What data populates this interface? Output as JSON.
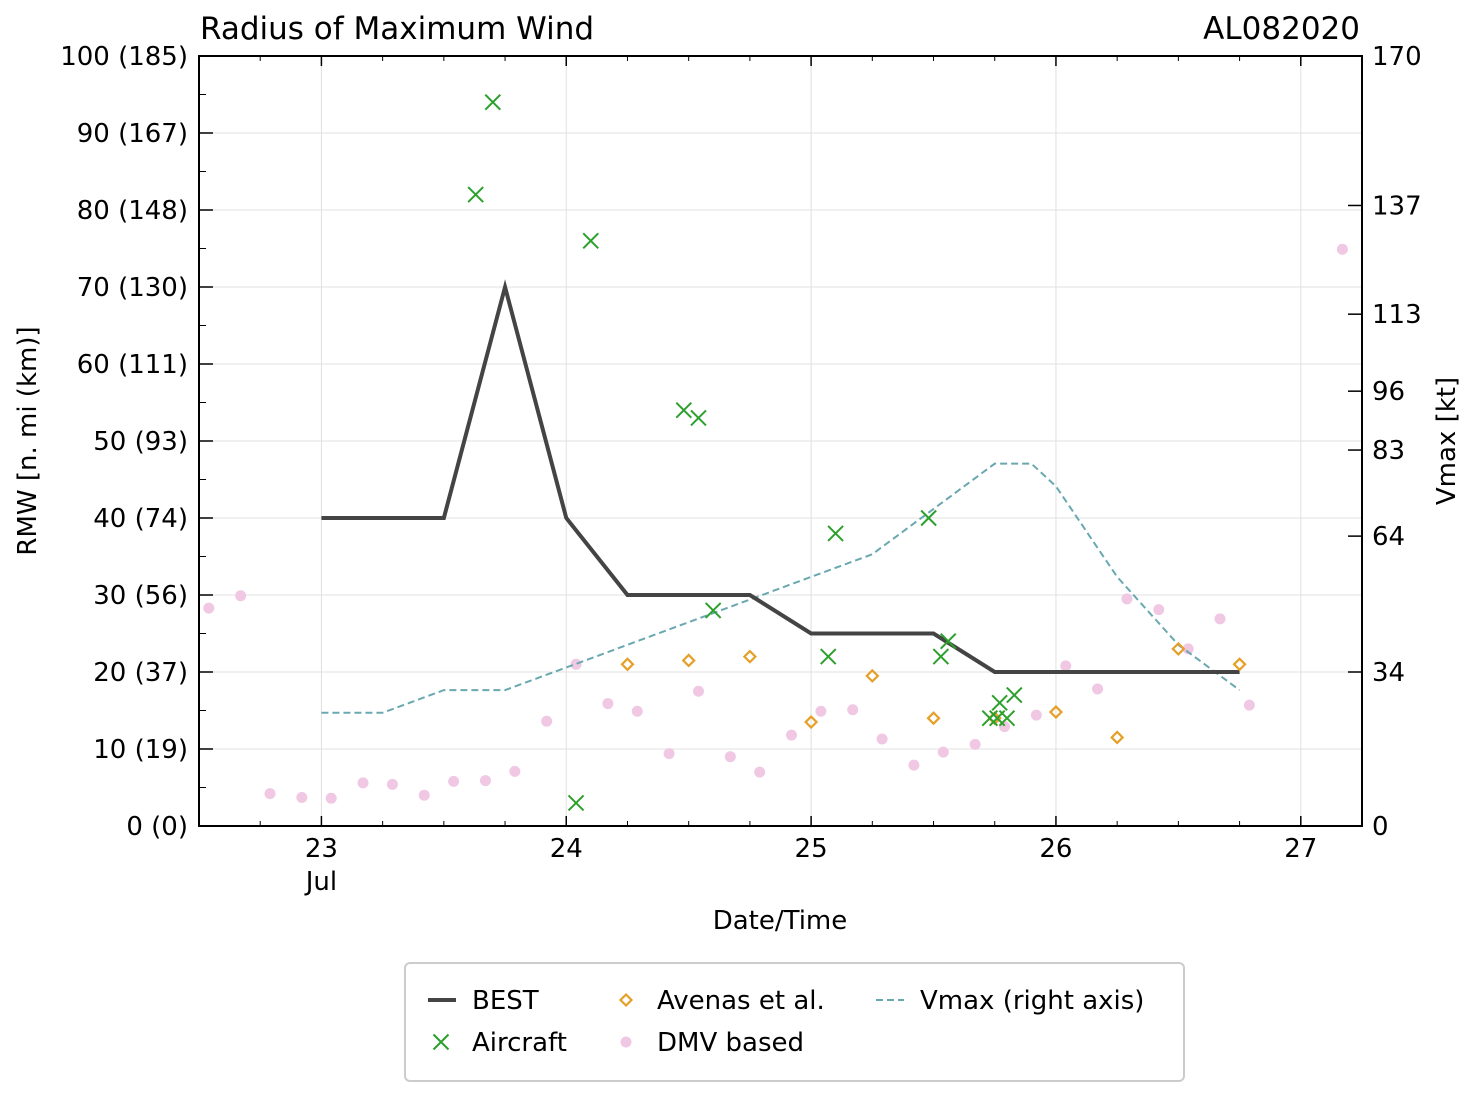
{
  "chart_data": {
    "type": "line",
    "title": "Radius of Maximum Wind",
    "storm_id": "AL082020",
    "xlabel": "Date/Time",
    "ylabel": "RMW [n. mi (km)]",
    "y2label": "Vmax [kt]",
    "xlim": [
      22.5,
      27.25
    ],
    "ylim": [
      0,
      100
    ],
    "y2lim": [
      0,
      170
    ],
    "grid": true,
    "legend_position": "bottom-center",
    "x_ticks": [
      {
        "value": 23,
        "label": "23",
        "sublabel": "Jul"
      },
      {
        "value": 24,
        "label": "24"
      },
      {
        "value": 25,
        "label": "25"
      },
      {
        "value": 26,
        "label": "26"
      },
      {
        "value": 27,
        "label": "27"
      }
    ],
    "y_ticks": [
      {
        "value": 0,
        "label": "0 (0)"
      },
      {
        "value": 10,
        "label": "10 (19)"
      },
      {
        "value": 20,
        "label": "20 (37)"
      },
      {
        "value": 30,
        "label": "30 (56)"
      },
      {
        "value": 40,
        "label": "40 (74)"
      },
      {
        "value": 50,
        "label": "50 (93)"
      },
      {
        "value": 60,
        "label": "60 (111)"
      },
      {
        "value": 70,
        "label": "70 (130)"
      },
      {
        "value": 80,
        "label": "80 (148)"
      },
      {
        "value": 90,
        "label": "90 (167)"
      },
      {
        "value": 100,
        "label": "100 (185)"
      }
    ],
    "y2_ticks": [
      {
        "value": 0,
        "label": "0"
      },
      {
        "value": 34,
        "label": "34"
      },
      {
        "value": 64,
        "label": "64"
      },
      {
        "value": 83,
        "label": "83"
      },
      {
        "value": 96,
        "label": "96"
      },
      {
        "value": 113,
        "label": "113"
      },
      {
        "value": 137,
        "label": "137"
      },
      {
        "value": 170,
        "label": "170"
      }
    ],
    "series": [
      {
        "name": "BEST",
        "style": "line",
        "color": "#444444",
        "x": [
          23.0,
          23.5,
          23.75,
          24.0,
          24.25,
          24.5,
          24.75,
          25.0,
          25.25,
          25.5,
          25.75,
          26.0,
          26.25,
          26.5,
          26.75
        ],
        "y": [
          40,
          40,
          70,
          40,
          30,
          30,
          30,
          25,
          25,
          25,
          20,
          20,
          20,
          20,
          20
        ]
      },
      {
        "name": "Aircraft",
        "style": "x-marker",
        "color": "#2ca02c",
        "x": [
          23.63,
          23.7,
          24.04,
          24.1,
          24.48,
          24.54,
          24.6,
          25.07,
          25.1,
          25.48,
          25.53,
          25.56,
          25.73,
          25.76,
          25.77,
          25.8,
          25.83
        ],
        "y": [
          82,
          94,
          3,
          76,
          54,
          53,
          28,
          22,
          38,
          40,
          22,
          24,
          14,
          14,
          16,
          14,
          17
        ]
      },
      {
        "name": "Avenas et al.",
        "style": "diamond-marker",
        "color": "#e69f27",
        "x": [
          24.25,
          24.5,
          24.75,
          25.0,
          25.25,
          25.5,
          25.75,
          26.0,
          26.25,
          26.5,
          26.75
        ],
        "y": [
          21,
          21.5,
          22,
          13.5,
          19.5,
          14,
          14,
          14.8,
          11.5,
          23,
          21
        ]
      },
      {
        "name": "DMV based",
        "style": "dot-marker",
        "color": "#f0c8e4",
        "x": [
          22.54,
          22.67,
          22.79,
          22.92,
          23.04,
          23.17,
          23.29,
          23.42,
          23.54,
          23.67,
          23.79,
          23.92,
          24.04,
          24.17,
          24.29,
          24.42,
          24.54,
          24.67,
          24.79,
          24.92,
          25.04,
          25.17,
          25.29,
          25.42,
          25.54,
          25.67,
          25.79,
          25.92,
          26.04,
          26.17,
          26.29,
          26.42,
          26.54,
          26.67,
          26.79,
          27.17
        ],
        "y": [
          28.3,
          29.9,
          4.2,
          3.7,
          3.6,
          5.6,
          5.4,
          4,
          5.8,
          5.9,
          7.1,
          13.6,
          21,
          15.9,
          14.9,
          9.4,
          17.5,
          9,
          7,
          11.8,
          14.9,
          15.1,
          11.3,
          7.9,
          9.6,
          10.6,
          12.9,
          14.4,
          20.8,
          17.8,
          29.5,
          28.1,
          23,
          26.9,
          15.7,
          74.9
        ]
      },
      {
        "name": "Vmax (right axis)",
        "style": "dashed-line",
        "color": "#6aa8b0",
        "axis": "right",
        "x": [
          23.0,
          23.25,
          23.5,
          23.75,
          24.0,
          24.25,
          24.5,
          24.75,
          25.0,
          25.25,
          25.5,
          25.75,
          25.9,
          26.0,
          26.25,
          26.5,
          26.75
        ],
        "y": [
          25,
          25,
          30,
          30,
          35,
          40,
          45,
          50,
          55,
          60,
          70,
          80,
          80,
          75,
          55,
          40,
          30
        ]
      }
    ],
    "legend": [
      {
        "label": "BEST",
        "series": 0
      },
      {
        "label": "Aircraft",
        "series": 1
      },
      {
        "label": "Avenas et al.",
        "series": 2
      },
      {
        "label": "DMV based",
        "series": 3
      },
      {
        "label": "Vmax (right axis)",
        "series": 4
      }
    ]
  }
}
